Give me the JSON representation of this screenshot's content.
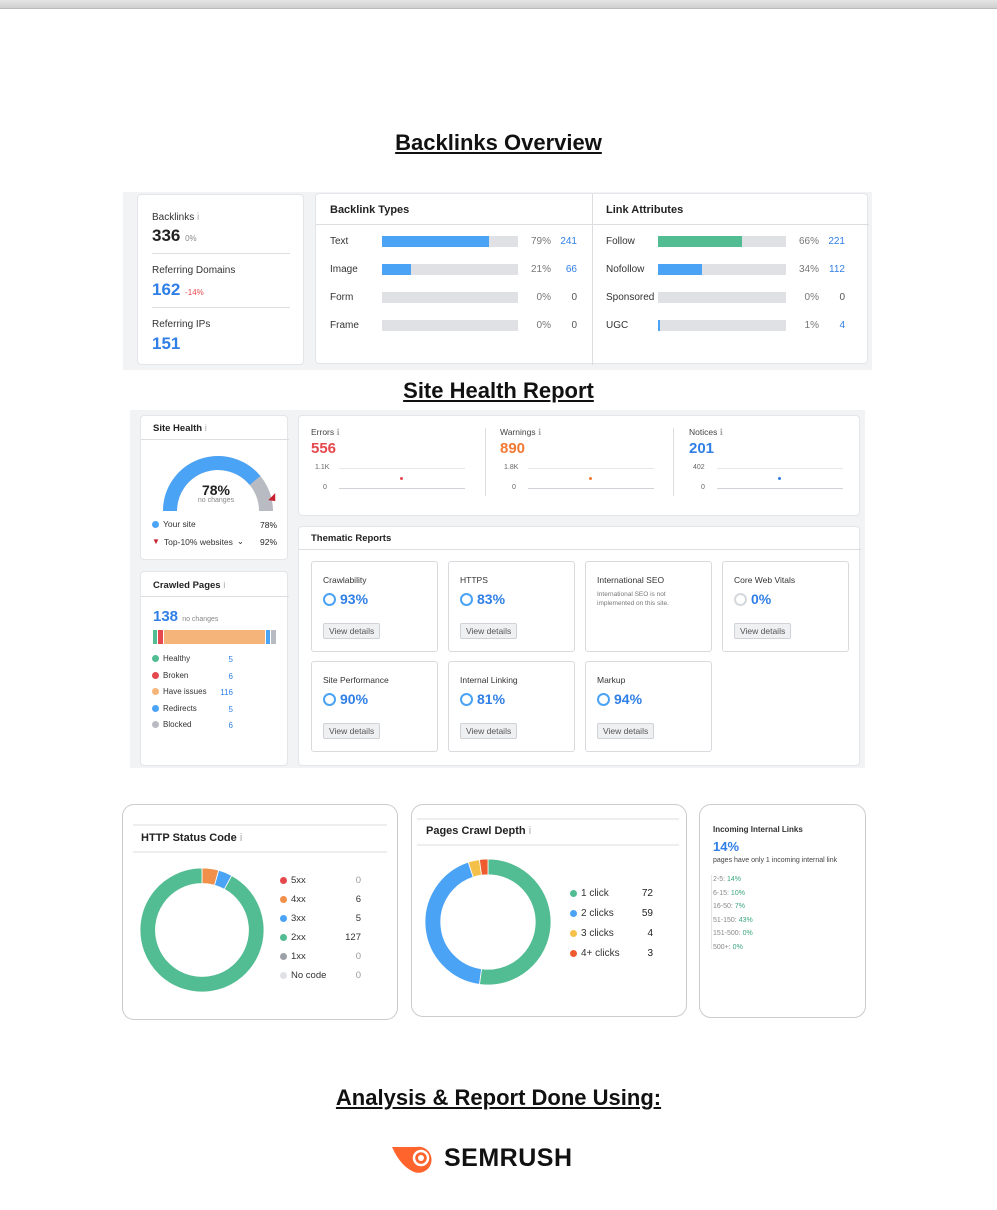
{
  "titles": {
    "backlinks": "Backlinks Overview",
    "site_health": "Site Health Report",
    "analysis": "Analysis & Report Done Using:"
  },
  "backlinks": {
    "summary": [
      {
        "label": "Backlinks",
        "value": "336",
        "change": "0%",
        "info": "i"
      },
      {
        "label": "Referring Domains",
        "value": "162",
        "change": "-14%"
      },
      {
        "label": "Referring IPs",
        "value": "151"
      }
    ],
    "types": {
      "title": "Backlink Types",
      "rows": [
        {
          "label": "Text",
          "percent": 79,
          "pct_label": "79%",
          "count": "241"
        },
        {
          "label": "Image",
          "percent": 21,
          "pct_label": "21%",
          "count": "66"
        },
        {
          "label": "Form",
          "percent": 0,
          "pct_label": "0%",
          "count": "0"
        },
        {
          "label": "Frame",
          "percent": 0,
          "pct_label": "0%",
          "count": "0"
        }
      ]
    },
    "attributes": {
      "title": "Link Attributes",
      "rows": [
        {
          "label": "Follow",
          "percent": 66,
          "pct_label": "66%",
          "count": "221",
          "color": "#52bc92"
        },
        {
          "label": "Nofollow",
          "percent": 34,
          "pct_label": "34%",
          "count": "112",
          "color": "#4ba3f5"
        },
        {
          "label": "Sponsored",
          "percent": 0,
          "pct_label": "0%",
          "count": "0",
          "color": "#4ba3f5"
        },
        {
          "label": "UGC",
          "percent": 1,
          "pct_label": "1%",
          "count": "4",
          "color": "#4ba3f5"
        }
      ]
    }
  },
  "site_health": {
    "title": "Site Health",
    "info": "i",
    "percent": 78,
    "value": "78%",
    "sub": "no changes",
    "legend": [
      {
        "label": "Your site",
        "value": "78%"
      },
      {
        "label": "Top-10% websites",
        "value": "92%"
      }
    ],
    "top10_percent": 92
  },
  "issues": [
    {
      "label": "Errors",
      "value": "556",
      "max": "1.1K",
      "zero": "0",
      "color": "#e5484d"
    },
    {
      "label": "Warnings",
      "value": "890",
      "max": "1.8K",
      "zero": "0",
      "color": "#f07a33"
    },
    {
      "label": "Notices",
      "value": "201",
      "max": "402",
      "zero": "0",
      "color": "#2f7fe6"
    }
  ],
  "crawled": {
    "title": "Crawled Pages",
    "info": "i",
    "value": "138",
    "sub": "no changes",
    "items": [
      {
        "label": "Healthy",
        "value": 5,
        "color": "#52bc92"
      },
      {
        "label": "Broken",
        "value": 6,
        "color": "#e5484d"
      },
      {
        "label": "Have issues",
        "value": 116,
        "color": "#f5b57a"
      },
      {
        "label": "Redirects",
        "value": 5,
        "color": "#4ba3f5"
      },
      {
        "label": "Blocked",
        "value": 6,
        "color": "#b8bcc2"
      }
    ]
  },
  "thematic": {
    "title": "Thematic Reports",
    "view": "View details",
    "tiles": [
      {
        "title": "Crawlability",
        "value": "93%"
      },
      {
        "title": "HTTPS",
        "value": "83%"
      },
      {
        "title": "International SEO",
        "note": "International SEO is not implemented on this site."
      },
      {
        "title": "Core Web Vitals",
        "value": "0%"
      },
      {
        "title": "Site Performance",
        "value": "90%"
      },
      {
        "title": "Internal Linking",
        "value": "81%"
      },
      {
        "title": "Markup",
        "value": "94%"
      }
    ]
  },
  "http_status": {
    "title": "HTTP Status Code",
    "info": "i",
    "items": [
      {
        "label": "5xx",
        "value": 0,
        "color": "#e5484d"
      },
      {
        "label": "4xx",
        "value": 6,
        "color": "#f0904a"
      },
      {
        "label": "3xx",
        "value": 5,
        "color": "#4ba3f5"
      },
      {
        "label": "2xx",
        "value": 127,
        "color": "#52bc92"
      },
      {
        "label": "1xx",
        "value": 0,
        "color": "#9ca1a8"
      },
      {
        "label": "No code",
        "value": 0,
        "color": "#dfe1e5"
      }
    ]
  },
  "crawl_depth": {
    "title": "Pages Crawl Depth",
    "info": "i",
    "items": [
      {
        "label": "1 click",
        "value": 72,
        "color": "#52bc92"
      },
      {
        "label": "2 clicks",
        "value": 59,
        "color": "#4ba3f5"
      },
      {
        "label": "3 clicks",
        "value": 4,
        "color": "#f5c04a"
      },
      {
        "label": "4+ clicks",
        "value": 3,
        "color": "#ef5a2f"
      }
    ]
  },
  "incoming": {
    "title": "Incoming Internal Links",
    "value": "14%",
    "sub": "pages have only 1 incoming internal link",
    "rows": [
      {
        "label": "2-5:",
        "value": "14%"
      },
      {
        "label": "6-15:",
        "value": "10%"
      },
      {
        "label": "16-50:",
        "value": "7%"
      },
      {
        "label": "51-150:",
        "value": "43%"
      },
      {
        "label": "151-500:",
        "value": "0%"
      },
      {
        "label": "500+:",
        "value": "0%"
      }
    ]
  },
  "logo": {
    "text": "SEMRUSH"
  }
}
